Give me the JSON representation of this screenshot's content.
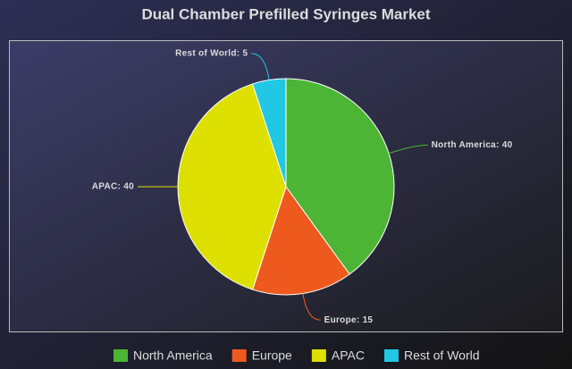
{
  "chart_data": {
    "type": "pie",
    "title": "Dual Chamber Prefilled Syringes Market",
    "categories": [
      "North America",
      "Europe",
      "APAC",
      "Rest of World"
    ],
    "values": [
      40,
      15,
      40,
      5
    ],
    "value_labels": [
      "North America: 40",
      "Europe: 15",
      "APAC: 40",
      "Rest of World: 5"
    ],
    "colors": [
      "#4db535",
      "#ee5a1e",
      "#dde000",
      "#22c8e3"
    ],
    "legend": "bottom"
  }
}
